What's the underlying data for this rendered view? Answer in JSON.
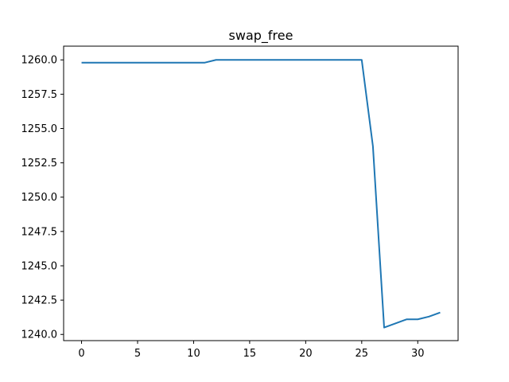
{
  "chart_data": {
    "type": "line",
    "title": "swap_free",
    "xlabel": "",
    "ylabel": "",
    "xlim": [
      -1.6,
      33.6
    ],
    "ylim": [
      1239.55,
      1261.0
    ],
    "grid": false,
    "legend": "none",
    "x_ticks": [
      0,
      5,
      10,
      15,
      20,
      25,
      30
    ],
    "x_tick_labels": [
      "0",
      "5",
      "10",
      "15",
      "20",
      "25",
      "30"
    ],
    "y_ticks": [
      1240.0,
      1242.5,
      1245.0,
      1247.5,
      1250.0,
      1252.5,
      1255.0,
      1257.5,
      1260.0
    ],
    "y_tick_labels": [
      "1240.0",
      "1242.5",
      "1245.0",
      "1247.5",
      "1250.0",
      "1252.5",
      "1255.0",
      "1257.5",
      "1260.0"
    ],
    "series": [
      {
        "color": "#1f77b4",
        "x": [
          0,
          1,
          2,
          3,
          4,
          5,
          6,
          7,
          8,
          9,
          10,
          11,
          12,
          13,
          14,
          15,
          16,
          17,
          18,
          19,
          20,
          21,
          22,
          23,
          24,
          25,
          26,
          27,
          28,
          29,
          30,
          31,
          32
        ],
        "values": [
          1259.8,
          1259.8,
          1259.8,
          1259.8,
          1259.8,
          1259.8,
          1259.8,
          1259.8,
          1259.8,
          1259.8,
          1259.8,
          1259.8,
          1260.0,
          1260.0,
          1260.0,
          1260.0,
          1260.0,
          1260.0,
          1260.0,
          1260.0,
          1260.0,
          1260.0,
          1260.0,
          1260.0,
          1260.0,
          1260.0,
          1253.7,
          1240.5,
          1240.8,
          1241.1,
          1241.1,
          1241.3,
          1241.6
        ]
      }
    ]
  }
}
